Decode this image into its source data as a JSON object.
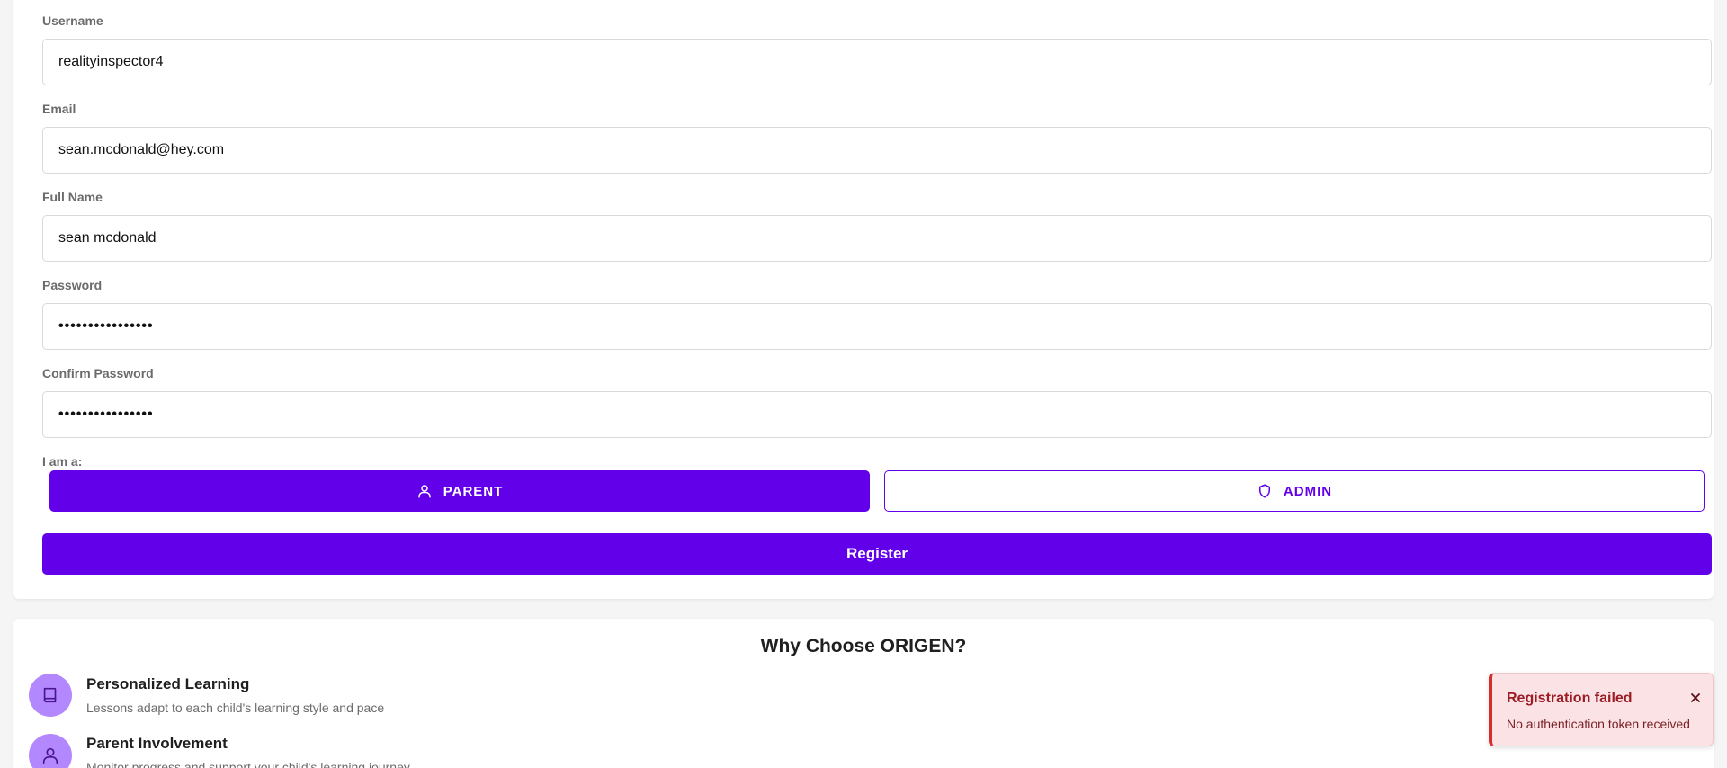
{
  "form": {
    "username": {
      "label": "Username",
      "value": "realityinspector4"
    },
    "email": {
      "label": "Email",
      "value": "sean.mcdonald@hey.com"
    },
    "full_name": {
      "label": "Full Name",
      "value": "sean mcdonald"
    },
    "password": {
      "label": "Password",
      "value": "••••••••••••••••"
    },
    "confirm_password": {
      "label": "Confirm Password",
      "value": "••••••••••••••••"
    },
    "role_label": "I am a:",
    "roles": [
      {
        "label": "PARENT",
        "icon": "person-icon",
        "selected": true
      },
      {
        "label": "ADMIN",
        "icon": "shield-icon",
        "selected": false
      }
    ],
    "register_label": "Register"
  },
  "features": {
    "title": "Why Choose ORIGEN?",
    "items": [
      {
        "title": "Personalized Learning",
        "description": "Lessons adapt to each child's learning style and pace",
        "icon": "book-icon"
      },
      {
        "title": "Parent Involvement",
        "description": "Monitor progress and support your child's learning journey",
        "icon": "person-icon"
      }
    ]
  },
  "toast": {
    "title": "Registration failed",
    "message": "No authentication token received",
    "close_icon": "close-icon"
  },
  "colors": {
    "accent": "#6200ea",
    "icon_bg": "#b388ff",
    "toast_bg": "#fbe2e4",
    "toast_accent": "#d32f2f"
  }
}
